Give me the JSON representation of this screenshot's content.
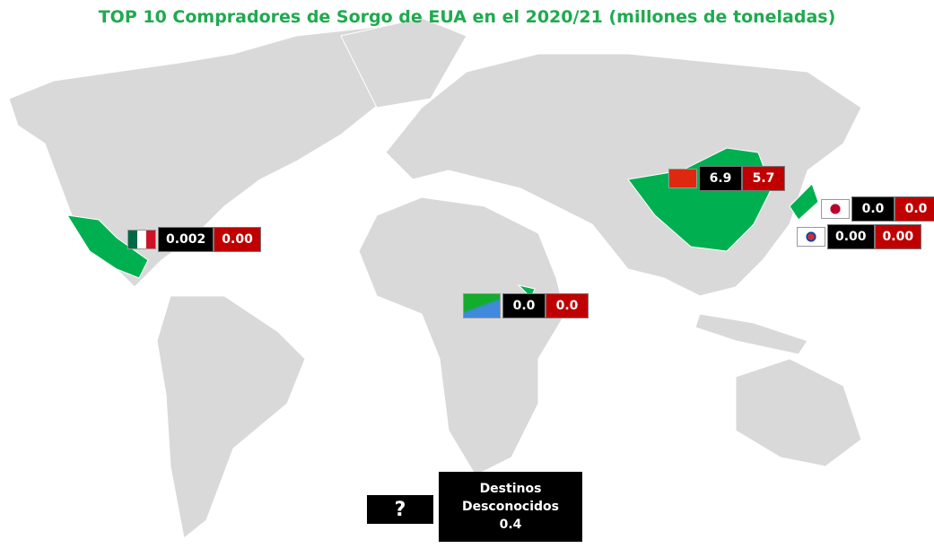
{
  "title": "TOP 10 Compradores de Sorgo de EUA en el 2020/21 (millones de toneladas)",
  "markers": [
    {
      "values": [
        "0.002",
        "0.00"
      ]
    },
    {
      "values": [
        "6.9",
        "5.7"
      ]
    },
    {
      "values": [
        "0.0",
        "0.0"
      ]
    },
    {
      "values": [
        "0.00",
        "0.00"
      ]
    },
    {
      "values": [
        "0.0",
        "0.0"
      ]
    }
  ],
  "unknown": {
    "icon": "?",
    "label": "Destinos Desconocidos",
    "value": "0.4"
  }
}
